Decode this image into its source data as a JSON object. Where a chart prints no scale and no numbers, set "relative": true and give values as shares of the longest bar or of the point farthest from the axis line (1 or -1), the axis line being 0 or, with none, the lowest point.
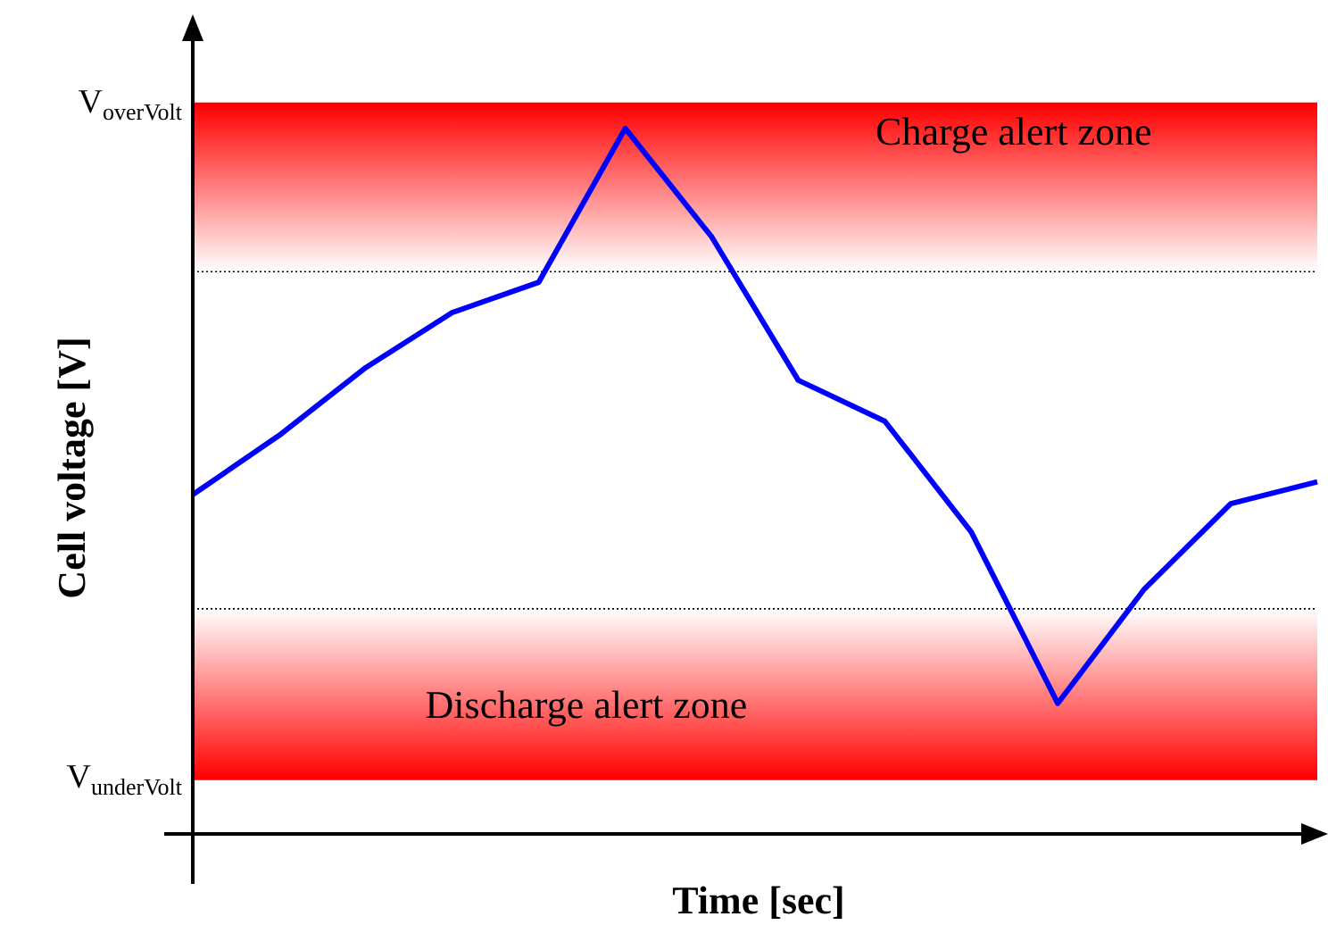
{
  "chart_data": {
    "type": "line",
    "relative": true,
    "xlabel": "Time [sec]",
    "ylabel": "Cell voltage [V]",
    "categories": [
      null,
      null,
      null,
      null,
      null,
      null,
      null,
      null,
      null,
      null,
      null,
      null,
      null,
      null
    ],
    "series": [
      {
        "color": "#0000ff",
        "values": [
          0.481,
          0.565,
          0.661,
          0.739,
          0.782,
          1,
          0.846,
          0.643,
          0.585,
          0.428,
          0.185,
          0.347,
          0.468,
          0.499
        ]
      }
    ],
    "bands": [
      {
        "axis": "y",
        "from": 0.797,
        "to": 1.035,
        "label": "Charge alert zone",
        "color": "#ff0000"
      },
      {
        "axis": "y",
        "from": 0.078,
        "to": 0.319,
        "label": "Discharge alert zone",
        "color": "#ff0000"
      }
    ],
    "ref_lines": [
      {
        "axis": "y",
        "value": 1.035,
        "label": "V$_{overVolt}$",
        "color": "#ff0000"
      },
      {
        "axis": "y",
        "value": 0.078,
        "label": "V$_{underVolt}$",
        "color": "#ff0000"
      },
      {
        "axis": "y",
        "value": 0.797,
        "color": "#000000",
        "line_style": "dotted"
      },
      {
        "axis": "y",
        "value": 0.319,
        "color": "#000000",
        "line_style": "dotted"
      }
    ],
    "legend": false,
    "marker": "none",
    "line_style": "solid"
  }
}
